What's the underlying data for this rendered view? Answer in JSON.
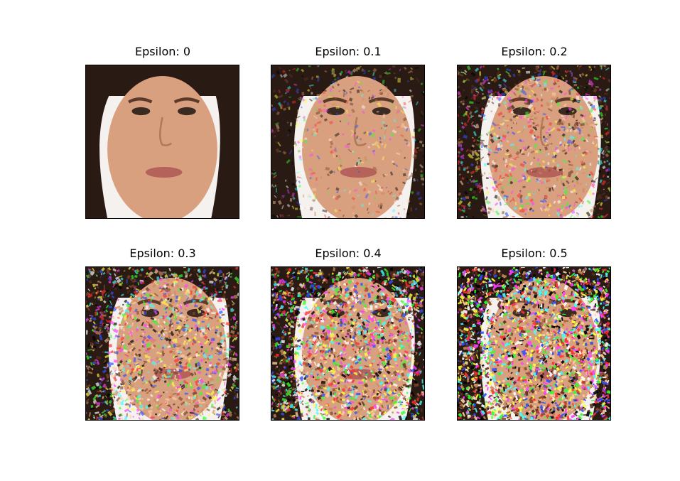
{
  "panels": [
    {
      "title": "Epsilon: 0",
      "epsilon": 0
    },
    {
      "title": "Epsilon: 0.1",
      "epsilon": 0.1
    },
    {
      "title": "Epsilon: 0.2",
      "epsilon": 0.2
    },
    {
      "title": "Epsilon: 0.3",
      "epsilon": 0.3
    },
    {
      "title": "Epsilon: 0.4",
      "epsilon": 0.4
    },
    {
      "title": "Epsilon: 0.5",
      "epsilon": 0.5
    }
  ],
  "colors": {
    "background": "#ffffff",
    "skin": "#d9a07f",
    "hair": "#2a1a14",
    "lips": "#b5625a",
    "backdrop": "#f4f1ee"
  }
}
